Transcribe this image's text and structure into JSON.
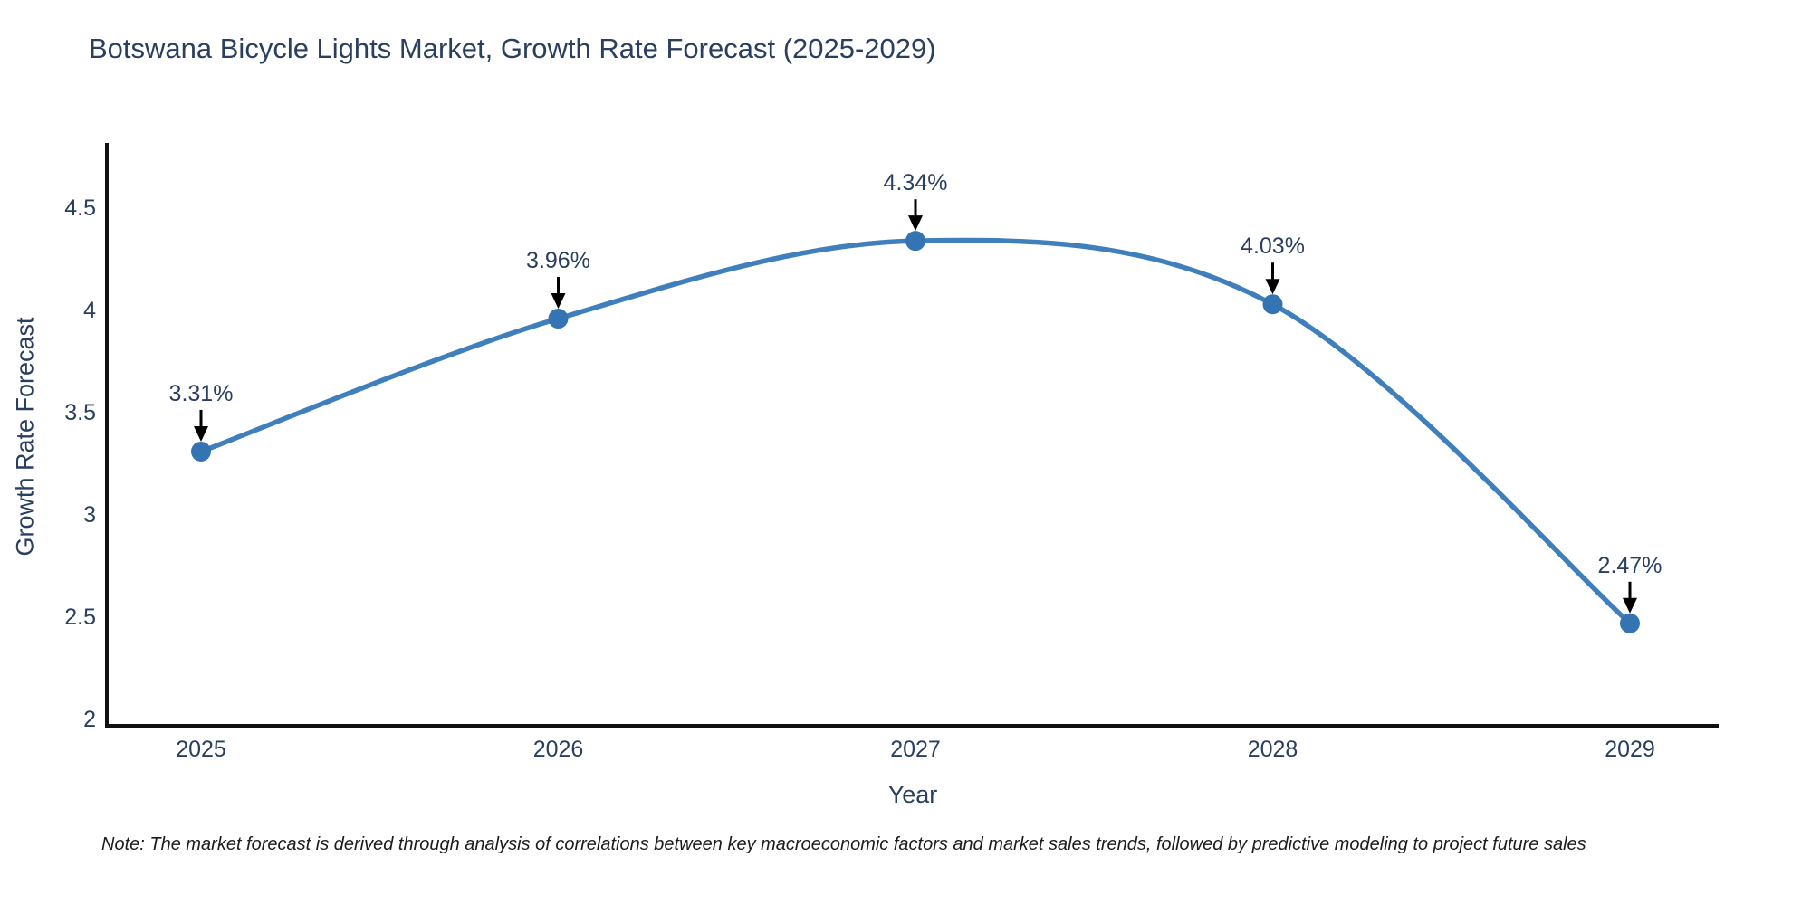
{
  "chart_data": {
    "type": "line",
    "title": "Botswana Bicycle Lights Market, Growth Rate Forecast (2025-2029)",
    "xlabel": "Year",
    "ylabel": "Growth Rate Forecast",
    "x": [
      2025,
      2026,
      2027,
      2028,
      2029
    ],
    "series": [
      {
        "name": "Growth Rate Forecast",
        "values": [
          3.31,
          3.96,
          4.34,
          4.03,
          2.47
        ]
      }
    ],
    "point_labels": [
      "3.31%",
      "3.96%",
      "4.34%",
      "4.03%",
      "2.47%"
    ],
    "xticks": [
      "2025",
      "2026",
      "2027",
      "2028",
      "2029"
    ],
    "yticks": [
      4.5,
      4,
      3.5,
      3,
      2.5,
      2
    ],
    "ylim": [
      1.96,
      4.82
    ],
    "line_shape": "spline",
    "grid": false,
    "legend": "none",
    "colors": {
      "line": "#3f7fbc",
      "marker": "#3474b2",
      "axis": "#111111",
      "text": "#2a3f5f",
      "annotation_arrow": "#000000"
    },
    "note": "Note: The market forecast is derived through analysis of correlations between key macroeconomic factors and market sales trends, followed by predictive modeling to project future sales"
  }
}
